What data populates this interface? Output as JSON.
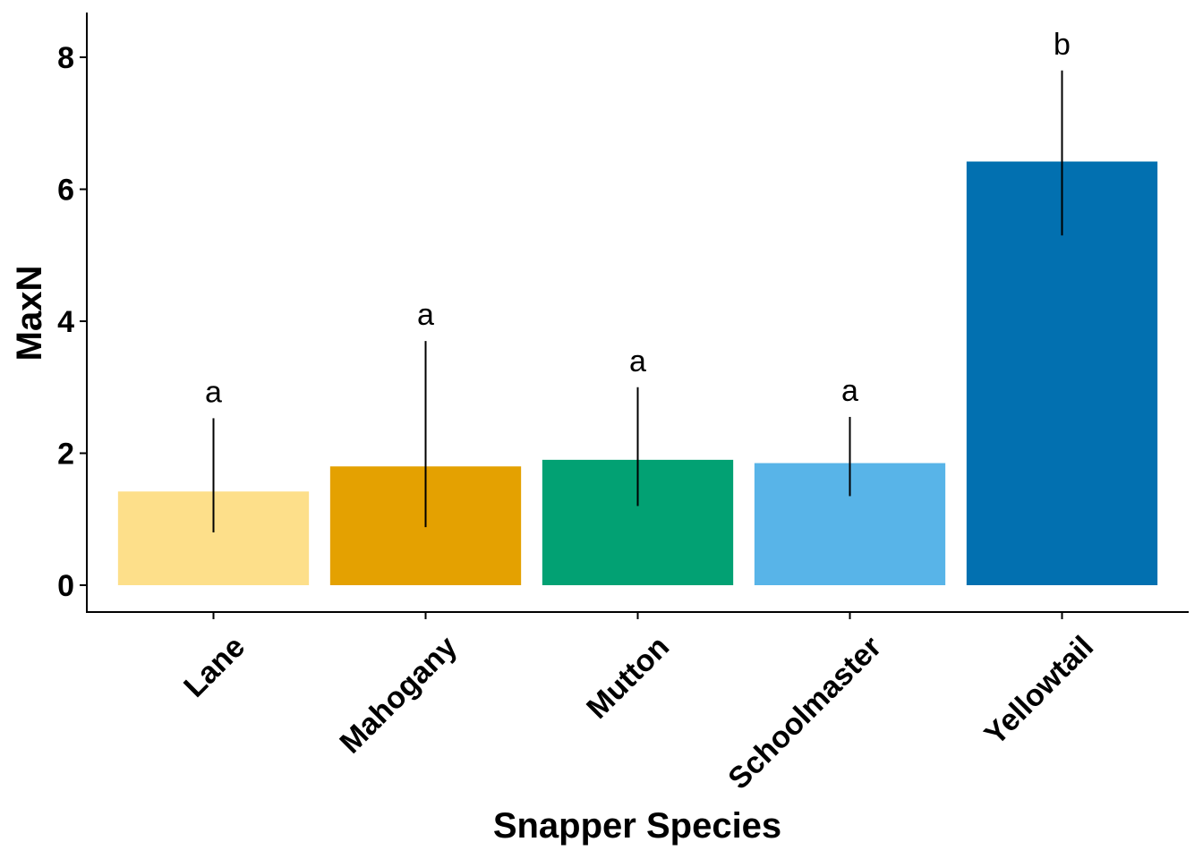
{
  "chart_data": {
    "type": "bar",
    "xlabel": "Snapper Species",
    "ylabel": "MaxN",
    "ylim": [
      -0.4,
      8.7
    ],
    "yticks": [
      0,
      2,
      4,
      6,
      8
    ],
    "categories": [
      "Lane",
      "Mahogany",
      "Mutton",
      "Schoolmaster",
      "Yellowtail"
    ],
    "values": [
      1.42,
      1.8,
      1.9,
      1.85,
      6.42
    ],
    "error_low": [
      0.8,
      0.88,
      1.2,
      1.35,
      5.3
    ],
    "error_high": [
      2.53,
      3.7,
      3.0,
      2.55,
      7.8
    ],
    "significance_labels": [
      "a",
      "a",
      "a",
      "a",
      "b"
    ],
    "colors": [
      "#FDDF8A",
      "#E4A101",
      "#02A173",
      "#58B4E8",
      "#0270B0"
    ],
    "grid": false,
    "legend": "none"
  }
}
